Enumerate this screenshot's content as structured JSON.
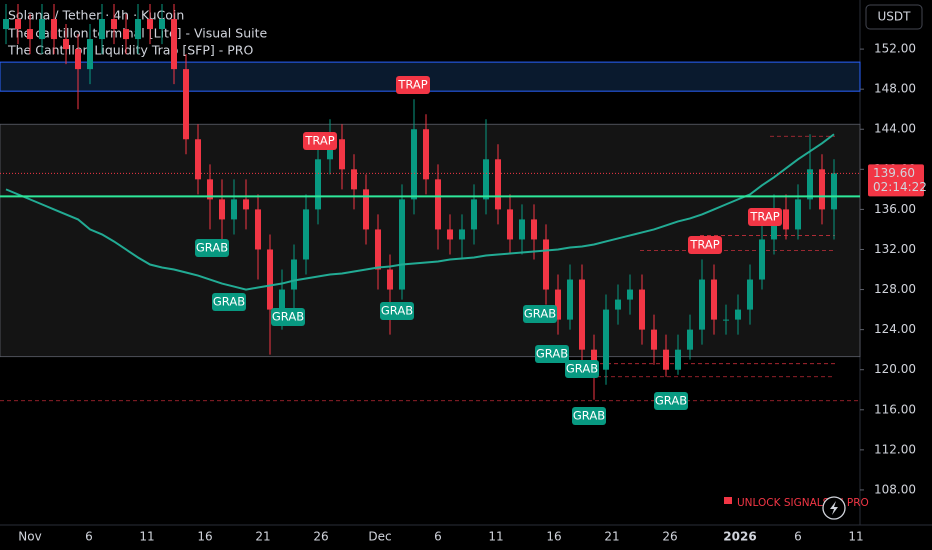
{
  "chart_data": {
    "type": "candlestick",
    "title": "Solana / Tether · 4h · KuCoin",
    "indicators": [
      "The cantillon terminal [Lite] - Visual Suite",
      "The Cantillon Liquidity Trap [SFP] - PRO"
    ],
    "currency": "USDT",
    "promo": "UNLOCK SIGNALS IN PRO",
    "up_color": "#089981",
    "down_color": "#f23645",
    "ma_color": "#22ab94",
    "ylim": [
      104.5,
      156.9
    ],
    "yticks": [
      {
        "value": 152,
        "label": "152.00"
      },
      {
        "value": 148,
        "label": "148.00"
      },
      {
        "value": 144,
        "label": "144.00"
      },
      {
        "value": 140,
        "label": "140.00"
      },
      {
        "value": 136,
        "label": "136.00"
      },
      {
        "value": 132,
        "label": "132.00"
      },
      {
        "value": 128,
        "label": "128.00"
      },
      {
        "value": 124,
        "label": "124.00"
      },
      {
        "value": 120,
        "label": "120.00"
      },
      {
        "value": 116,
        "label": "116.00"
      },
      {
        "value": 112,
        "label": "112.00"
      },
      {
        "value": 108,
        "label": "108.00"
      }
    ],
    "xticks": [
      "Nov",
      "6",
      "11",
      "16",
      "21",
      "26",
      "Dec",
      "6",
      "11",
      "16",
      "21",
      "26",
      "2026",
      "6",
      "11"
    ],
    "last_price": {
      "value": 139.6,
      "label": "139.60"
    },
    "countdown": "02:14:22",
    "open": [
      154,
      155,
      154,
      153,
      155,
      153,
      152,
      150,
      153,
      155,
      154,
      153,
      155,
      154,
      155,
      150,
      143,
      139,
      137,
      135,
      137,
      136,
      132,
      126,
      128,
      131,
      136,
      141,
      143,
      140,
      138,
      134,
      130,
      128,
      137,
      144,
      139,
      134,
      133,
      134,
      137,
      141,
      136,
      133,
      135,
      133,
      128,
      125,
      129,
      122,
      120,
      126,
      127,
      128,
      124,
      122,
      120,
      122,
      124,
      129,
      125,
      125,
      126,
      129,
      133,
      136,
      134,
      137,
      140,
      136
    ],
    "high": [
      156.5,
      156.5,
      155.5,
      156.5,
      156.5,
      154.5,
      153.5,
      154.5,
      156.5,
      156.5,
      155.5,
      156.5,
      156.5,
      156.5,
      156.5,
      151.5,
      144.5,
      140.5,
      139,
      139,
      139,
      137.5,
      133.5,
      130,
      132.5,
      137.5,
      142.5,
      145,
      144.5,
      141.5,
      139.5,
      135.5,
      131.5,
      138.5,
      147,
      145.5,
      140.5,
      135.5,
      135.5,
      138.5,
      145,
      142.5,
      137.5,
      136.5,
      136.5,
      134.5,
      129.5,
      130.5,
      130.5,
      123.5,
      127.5,
      128.5,
      129.5,
      129.5,
      125.5,
      123.5,
      123.5,
      125.5,
      131,
      130.5,
      126.5,
      127.5,
      130.5,
      134.5,
      137.5,
      137.5,
      138.5,
      143.5,
      141.5,
      141
    ],
    "low": [
      152.5,
      152.5,
      151.5,
      151.5,
      151.5,
      150.5,
      146,
      148.5,
      151.5,
      152.5,
      151.5,
      151.5,
      152.5,
      152.5,
      148.5,
      141.5,
      137.5,
      134,
      133,
      133.5,
      134,
      129,
      121.5,
      124,
      126,
      129.5,
      134.5,
      139.5,
      138,
      136,
      132.5,
      128,
      123.5,
      127,
      135.5,
      137.5,
      132,
      131.5,
      131,
      132.5,
      135.5,
      134.5,
      131.5,
      131.5,
      131,
      126.5,
      123.5,
      124,
      120.5,
      117,
      118.5,
      124.5,
      125.5,
      122.5,
      120.5,
      119.3,
      119.5,
      121,
      122.5,
      123.5,
      123.5,
      123.5,
      124.5,
      128,
      131.5,
      133,
      133,
      136,
      134.5,
      133
    ],
    "close": [
      155,
      154,
      153,
      155,
      153,
      152,
      150,
      153,
      155,
      154,
      153,
      155,
      154,
      155,
      150,
      143,
      139,
      137,
      135,
      137,
      136,
      132,
      126,
      128,
      131,
      136,
      141,
      143,
      140,
      138,
      134,
      130,
      128,
      137,
      144,
      139,
      134,
      133,
      134,
      137,
      141,
      136,
      133,
      135,
      133,
      128,
      125,
      129,
      122,
      120,
      126,
      127,
      128,
      124,
      122,
      120,
      122,
      124,
      129,
      125,
      125,
      126,
      129,
      133,
      136,
      134,
      137,
      140,
      136,
      139.6
    ],
    "ma": [
      138,
      137.5,
      137,
      136.5,
      136,
      135.5,
      135,
      134,
      133.5,
      132.8,
      132,
      131.2,
      130.5,
      130.2,
      130,
      129.7,
      129.4,
      129,
      128.6,
      128.3,
      128,
      128.2,
      128.4,
      128.6,
      128.9,
      129.1,
      129.3,
      129.5,
      129.6,
      129.8,
      130,
      130.2,
      130.3,
      130.5,
      130.6,
      130.7,
      130.8,
      131,
      131.1,
      131.2,
      131.4,
      131.5,
      131.6,
      131.7,
      131.8,
      131.9,
      132,
      132.2,
      132.3,
      132.5,
      132.8,
      133.1,
      133.4,
      133.7,
      134,
      134.4,
      134.8,
      135.1,
      135.5,
      136,
      136.5,
      137,
      137.5,
      138.4,
      139.2,
      140.1,
      141,
      141.8,
      142.6,
      143.5
    ],
    "range_zone": [
      121.3,
      144.5
    ],
    "supply_zone": [
      147.8,
      150.7
    ],
    "key_level": 137.3,
    "dashed_levels": [
      116.9,
      119.3,
      120.6,
      131.9,
      133.4,
      143.3
    ],
    "signals": [
      "TRAP",
      "TRAP",
      "TRAP",
      "TRAP",
      "GRAB",
      "GRAB",
      "GRAB",
      "GRAB",
      "GRAB",
      "GRAB",
      "GRAB",
      "GRAB",
      "GRAB"
    ]
  }
}
